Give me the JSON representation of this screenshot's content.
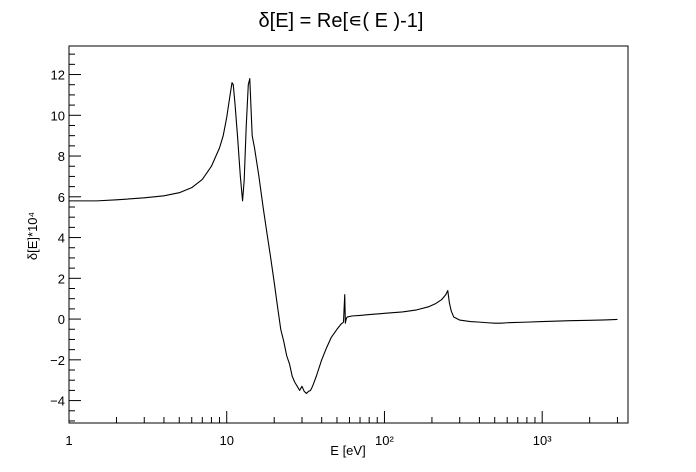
{
  "chart_data": {
    "type": "line",
    "title": "δ[E] = Re[∊( E )-1]",
    "xlabel": "E [eV]",
    "ylabel": "δ[E]*10⁴",
    "x_scale": "log",
    "xlim": [
      1,
      3500
    ],
    "ylim": [
      -5.1,
      13.4
    ],
    "grid": false,
    "legend": "none",
    "x_ticks": [
      {
        "value": 1,
        "label": "1"
      },
      {
        "value": 10,
        "label": "10"
      },
      {
        "value": 100,
        "label": "10²"
      },
      {
        "value": 1000,
        "label": "10³"
      }
    ],
    "y_ticks": [
      -4,
      -2,
      0,
      2,
      4,
      6,
      8,
      10,
      12
    ],
    "y_tick_labels": [
      "−4",
      "−2",
      "0",
      "2",
      "4",
      "6",
      "8",
      "10",
      "12"
    ],
    "series": [
      {
        "color": "#000000",
        "x": [
          1,
          1.5,
          2,
          3,
          4,
          5,
          6,
          7,
          8,
          9,
          9.5,
          10,
          10.5,
          10.8,
          11.0,
          11.3,
          11.7,
          12.2,
          12.6,
          12.9,
          13.3,
          13.7,
          14.0,
          14.5,
          15,
          16,
          17,
          18,
          19,
          20,
          21,
          22,
          23,
          24,
          25,
          26,
          27,
          28,
          29,
          30,
          31,
          32,
          33,
          34,
          35,
          37,
          40,
          43,
          46,
          50,
          53,
          55,
          56,
          56.5,
          57,
          57.5,
          58,
          62,
          70,
          80,
          100,
          130,
          160,
          190,
          210,
          230,
          245,
          252,
          258,
          265,
          275,
          300,
          350,
          400,
          450,
          500,
          550,
          600,
          800,
          1000,
          1500,
          2000,
          2500,
          3000
        ],
        "y": [
          5.8,
          5.8,
          5.85,
          5.95,
          6.05,
          6.2,
          6.45,
          6.85,
          7.5,
          8.4,
          9.0,
          9.9,
          11.0,
          11.6,
          11.5,
          10.5,
          9.0,
          7.0,
          5.8,
          6.8,
          9.5,
          11.5,
          11.8,
          9.0,
          8.4,
          7.0,
          5.5,
          4.2,
          3.0,
          1.8,
          0.6,
          -0.5,
          -1.1,
          -1.8,
          -2.2,
          -2.8,
          -3.1,
          -3.3,
          -3.5,
          -3.3,
          -3.55,
          -3.65,
          -3.55,
          -3.5,
          -3.3,
          -2.8,
          -2.0,
          -1.4,
          -0.9,
          -0.5,
          -0.25,
          -0.15,
          1.2,
          -0.2,
          -0.05,
          0.05,
          0.1,
          0.15,
          0.18,
          0.22,
          0.28,
          0.35,
          0.45,
          0.6,
          0.75,
          0.95,
          1.2,
          1.4,
          0.8,
          0.4,
          0.1,
          -0.05,
          -0.12,
          -0.15,
          -0.18,
          -0.2,
          -0.2,
          -0.18,
          -0.15,
          -0.12,
          -0.08,
          -0.06,
          -0.04,
          -0.02
        ]
      }
    ]
  }
}
